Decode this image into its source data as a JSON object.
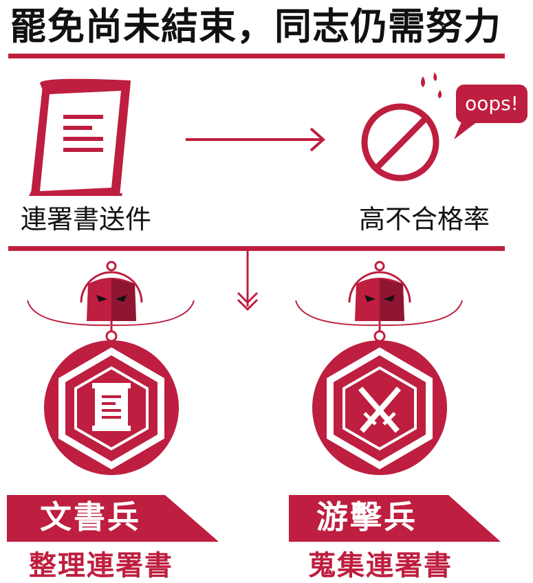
{
  "title": "罷免尚未結束，同志仍需努力",
  "step_left_label": "連署書送件",
  "step_right_label": "高不合格率",
  "speech_bubble": "oops!",
  "units": [
    {
      "name": "文書兵",
      "task": "整理連署書",
      "emblem": "document-icon"
    },
    {
      "name": "游擊兵",
      "task": "蒐集連署書",
      "emblem": "crossed-swords-icon"
    }
  ],
  "colors": {
    "accent": "#be1e3f",
    "dark_accent": "#8e1630",
    "text": "#111111"
  }
}
